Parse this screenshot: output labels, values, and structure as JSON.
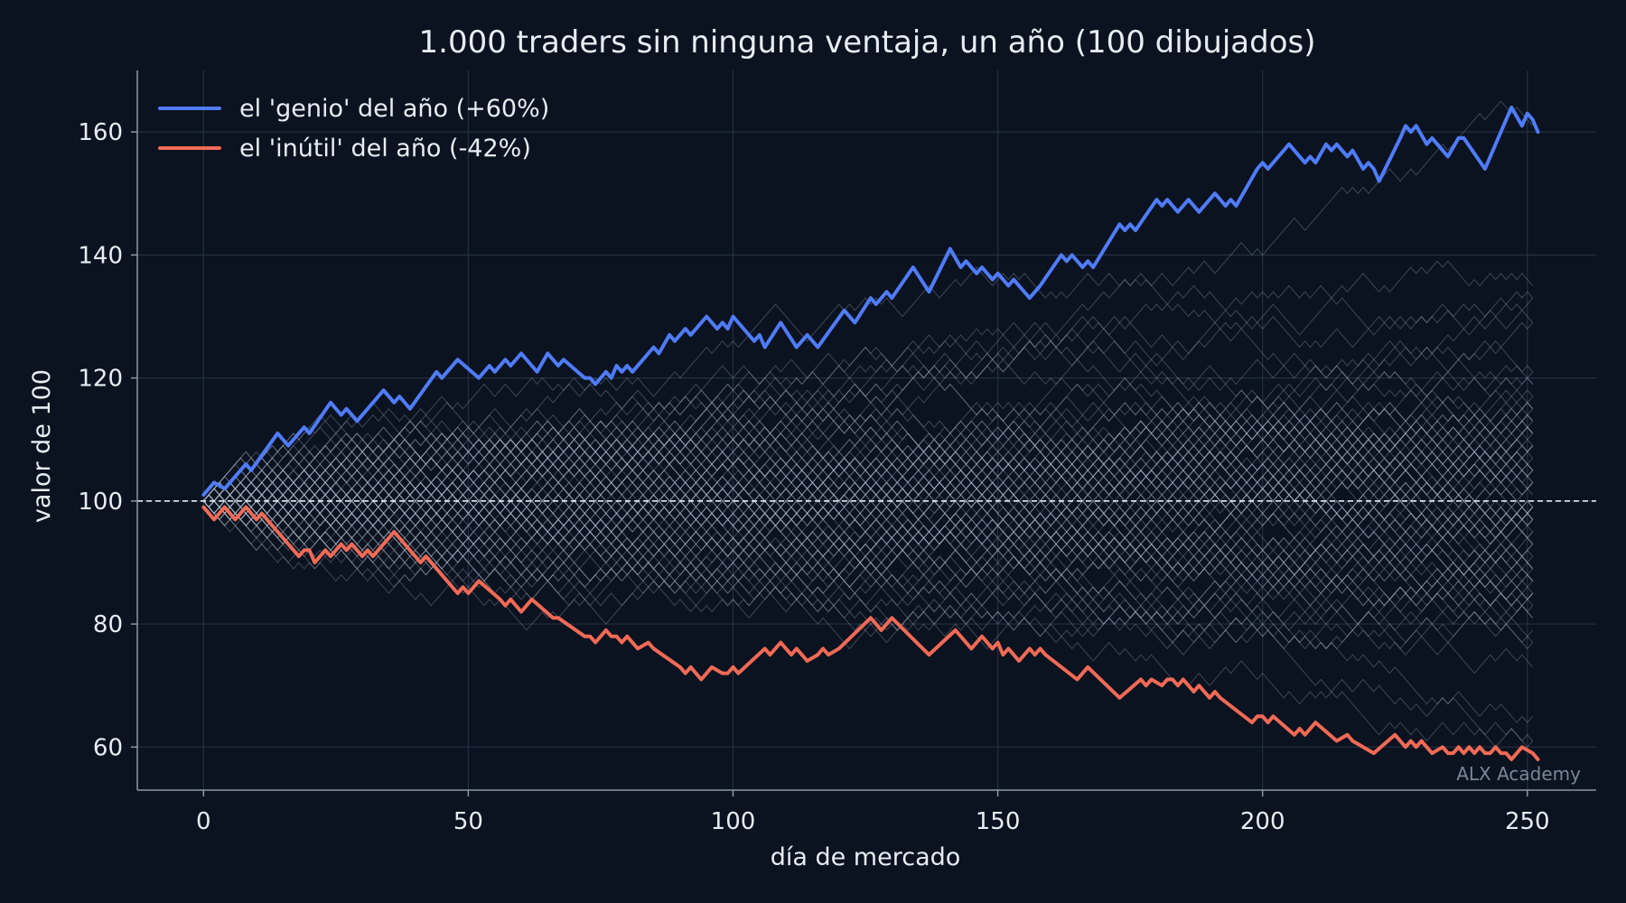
{
  "chart_data": {
    "type": "line",
    "title": "1.000 traders sin ninguna ventaja, un año (100 dibujados)",
    "xlabel": "día de mercado",
    "ylabel": "valor de 100",
    "xlim": [
      -12.5,
      263
    ],
    "ylim": [
      53,
      170
    ],
    "xticks": [
      0,
      50,
      100,
      150,
      200,
      250
    ],
    "yticks": [
      60,
      80,
      100,
      120,
      140,
      160
    ],
    "grid": true,
    "legend_position": "top-left",
    "reference_line": {
      "y": 100,
      "style": "dashed",
      "color": "#e6edf3"
    },
    "background_paths": {
      "count": 100,
      "days": 251,
      "start": 100,
      "color": "#aab4c3"
    },
    "series": [
      {
        "name": "el 'genio' del año (+60%)",
        "color": "#4f7cf7",
        "points": [
          [
            0,
            101
          ],
          [
            2,
            103
          ],
          [
            4,
            102
          ],
          [
            8,
            106
          ],
          [
            9,
            105
          ],
          [
            14,
            111
          ],
          [
            16,
            109
          ],
          [
            19,
            112
          ],
          [
            20,
            111
          ],
          [
            24,
            116
          ],
          [
            26,
            114
          ],
          [
            27,
            115
          ],
          [
            29,
            113
          ],
          [
            34,
            118
          ],
          [
            36,
            116
          ],
          [
            37,
            117
          ],
          [
            39,
            115
          ],
          [
            44,
            121
          ],
          [
            45,
            120
          ],
          [
            48,
            123
          ],
          [
            52,
            120
          ],
          [
            54,
            122
          ],
          [
            55,
            121
          ],
          [
            57,
            123
          ],
          [
            58,
            122
          ],
          [
            60,
            124
          ],
          [
            62,
            122
          ],
          [
            63,
            121
          ],
          [
            65,
            124
          ],
          [
            67,
            122
          ],
          [
            68,
            123
          ],
          [
            72,
            120
          ],
          [
            73,
            120
          ],
          [
            74,
            119
          ],
          [
            76,
            121
          ],
          [
            77,
            120
          ],
          [
            78,
            122
          ],
          [
            79,
            121
          ],
          [
            80,
            122
          ],
          [
            81,
            121
          ],
          [
            85,
            125
          ],
          [
            86,
            124
          ],
          [
            88,
            127
          ],
          [
            89,
            126
          ],
          [
            91,
            128
          ],
          [
            92,
            127
          ],
          [
            95,
            130
          ],
          [
            97,
            128
          ],
          [
            98,
            129
          ],
          [
            99,
            128
          ],
          [
            100,
            130
          ],
          [
            104,
            126
          ],
          [
            105,
            127
          ],
          [
            106,
            125
          ],
          [
            109,
            129
          ],
          [
            112,
            125
          ],
          [
            114,
            127
          ],
          [
            116,
            125
          ],
          [
            121,
            131
          ],
          [
            123,
            129
          ],
          [
            126,
            133
          ],
          [
            127,
            132
          ],
          [
            129,
            134
          ],
          [
            130,
            133
          ],
          [
            134,
            138
          ],
          [
            137,
            134
          ],
          [
            141,
            141
          ],
          [
            143,
            138
          ],
          [
            144,
            139
          ],
          [
            146,
            137
          ],
          [
            147,
            138
          ],
          [
            149,
            136
          ],
          [
            150,
            137
          ],
          [
            152,
            135
          ],
          [
            153,
            136
          ],
          [
            154,
            135
          ],
          [
            156,
            133
          ],
          [
            158,
            135
          ],
          [
            162,
            140
          ],
          [
            163,
            139
          ],
          [
            164,
            140
          ],
          [
            166,
            138
          ],
          [
            167,
            139
          ],
          [
            168,
            138
          ],
          [
            173,
            145
          ],
          [
            174,
            144
          ],
          [
            175,
            145
          ],
          [
            176,
            144
          ],
          [
            180,
            149
          ],
          [
            181,
            148
          ],
          [
            182,
            149
          ],
          [
            184,
            147
          ],
          [
            186,
            149
          ],
          [
            188,
            147
          ],
          [
            191,
            150
          ],
          [
            193,
            148
          ],
          [
            194,
            149
          ],
          [
            195,
            148
          ],
          [
            199,
            154
          ],
          [
            200,
            155
          ],
          [
            201,
            154
          ],
          [
            205,
            158
          ],
          [
            207,
            156
          ],
          [
            208,
            155
          ],
          [
            209,
            156
          ],
          [
            210,
            155
          ],
          [
            212,
            158
          ],
          [
            213,
            157
          ],
          [
            214,
            158
          ],
          [
            216,
            156
          ],
          [
            217,
            157
          ],
          [
            219,
            154
          ],
          [
            220,
            155
          ],
          [
            221,
            154
          ],
          [
            222,
            152
          ],
          [
            226,
            159
          ],
          [
            227,
            161
          ],
          [
            228,
            160
          ],
          [
            229,
            161
          ],
          [
            231,
            158
          ],
          [
            232,
            159
          ],
          [
            234,
            157
          ],
          [
            235,
            156
          ],
          [
            237,
            159
          ],
          [
            238,
            159
          ],
          [
            242,
            154
          ],
          [
            247,
            164
          ],
          [
            249,
            161
          ],
          [
            250,
            163
          ],
          [
            251,
            162
          ],
          [
            252,
            160
          ]
        ]
      },
      {
        "name": "el 'inútil' del año (-42%)",
        "color": "#f06a55",
        "points": [
          [
            0,
            99
          ],
          [
            2,
            97
          ],
          [
            4,
            99
          ],
          [
            6,
            97
          ],
          [
            8,
            99
          ],
          [
            10,
            97
          ],
          [
            11,
            98
          ],
          [
            12,
            97
          ],
          [
            18,
            91
          ],
          [
            19,
            92
          ],
          [
            20,
            92
          ],
          [
            21,
            90
          ],
          [
            23,
            92
          ],
          [
            24,
            91
          ],
          [
            26,
            93
          ],
          [
            27,
            92
          ],
          [
            28,
            93
          ],
          [
            30,
            91
          ],
          [
            31,
            92
          ],
          [
            32,
            91
          ],
          [
            36,
            95
          ],
          [
            41,
            90
          ],
          [
            42,
            91
          ],
          [
            47,
            86
          ],
          [
            48,
            85
          ],
          [
            49,
            86
          ],
          [
            50,
            85
          ],
          [
            52,
            87
          ],
          [
            56,
            84
          ],
          [
            57,
            83
          ],
          [
            58,
            84
          ],
          [
            59,
            83
          ],
          [
            60,
            82
          ],
          [
            62,
            84
          ],
          [
            66,
            81
          ],
          [
            67,
            81
          ],
          [
            72,
            78
          ],
          [
            73,
            78
          ],
          [
            74,
            77
          ],
          [
            76,
            79
          ],
          [
            77,
            78
          ],
          [
            78,
            78
          ],
          [
            79,
            77
          ],
          [
            80,
            78
          ],
          [
            82,
            76
          ],
          [
            84,
            77
          ],
          [
            85,
            76
          ],
          [
            90,
            73
          ],
          [
            91,
            72
          ],
          [
            92,
            73
          ],
          [
            93,
            72
          ],
          [
            94,
            71
          ],
          [
            96,
            73
          ],
          [
            98,
            72
          ],
          [
            99,
            72
          ],
          [
            100,
            73
          ],
          [
            101,
            72
          ],
          [
            106,
            76
          ],
          [
            107,
            75
          ],
          [
            109,
            77
          ],
          [
            110,
            76
          ],
          [
            111,
            75
          ],
          [
            112,
            76
          ],
          [
            114,
            74
          ],
          [
            116,
            75
          ],
          [
            117,
            76
          ],
          [
            118,
            75
          ],
          [
            120,
            76
          ],
          [
            126,
            81
          ],
          [
            127,
            80
          ],
          [
            128,
            79
          ],
          [
            130,
            81
          ],
          [
            137,
            75
          ],
          [
            142,
            79
          ],
          [
            145,
            76
          ],
          [
            147,
            78
          ],
          [
            149,
            76
          ],
          [
            150,
            77
          ],
          [
            151,
            75
          ],
          [
            152,
            76
          ],
          [
            153,
            75
          ],
          [
            154,
            74
          ],
          [
            156,
            76
          ],
          [
            157,
            75
          ],
          [
            158,
            76
          ],
          [
            159,
            75
          ],
          [
            165,
            71
          ],
          [
            167,
            73
          ],
          [
            173,
            68
          ],
          [
            177,
            71
          ],
          [
            178,
            70
          ],
          [
            179,
            71
          ],
          [
            181,
            70
          ],
          [
            182,
            71
          ],
          [
            183,
            71
          ],
          [
            184,
            70
          ],
          [
            185,
            71
          ],
          [
            187,
            69
          ],
          [
            188,
            70
          ],
          [
            190,
            68
          ],
          [
            191,
            69
          ],
          [
            192,
            68
          ],
          [
            198,
            64
          ],
          [
            199,
            65
          ],
          [
            200,
            65
          ],
          [
            201,
            64
          ],
          [
            202,
            65
          ],
          [
            206,
            62
          ],
          [
            207,
            63
          ],
          [
            208,
            62
          ],
          [
            209,
            63
          ],
          [
            210,
            64
          ],
          [
            214,
            61
          ],
          [
            216,
            62
          ],
          [
            217,
            61
          ],
          [
            221,
            59
          ],
          [
            225,
            62
          ],
          [
            227,
            60
          ],
          [
            228,
            61
          ],
          [
            229,
            60
          ],
          [
            230,
            61
          ],
          [
            231,
            60
          ],
          [
            232,
            59
          ],
          [
            234,
            60
          ],
          [
            235,
            59
          ],
          [
            236,
            59
          ],
          [
            237,
            60
          ],
          [
            238,
            59
          ],
          [
            239,
            60
          ],
          [
            240,
            59
          ],
          [
            241,
            60
          ],
          [
            242,
            59
          ],
          [
            243,
            59
          ],
          [
            244,
            60
          ],
          [
            245,
            59
          ],
          [
            246,
            59
          ],
          [
            247,
            58
          ],
          [
            249,
            60
          ],
          [
            251,
            59
          ],
          [
            252,
            58
          ]
        ]
      }
    ],
    "watermark": "ALX Academy"
  },
  "colors": {
    "background": "#0b1220",
    "grid": "#25303f",
    "axis": "#8c98a8",
    "text": "#e6edf3",
    "watermark": "#7b8696"
  }
}
